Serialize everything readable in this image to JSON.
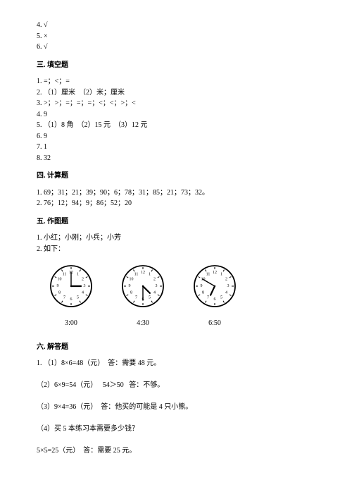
{
  "lines_top": [
    "4. √",
    "5. ×",
    "6. √"
  ],
  "section3_title": "三. 填空题",
  "section3_lines": [
    "1. =；<；=",
    "2. （1）厘米  （2）米；厘米",
    "3. >；>；=；=；=；<；<；>；<",
    "4. 9",
    "5. （1）8 角  （2）15 元  （3）12 元",
    "6. 9",
    "7. 1",
    "8. 32"
  ],
  "section4_title": "四. 计算题",
  "section4_lines": [
    "1. 69；31；21；39；90；6；78；31；85；21；73；32。",
    "2. 76；12；94；9；86；52；20"
  ],
  "section5_title": "五. 作图题",
  "section5_lines": [
    "1. 小红；小刚；小兵；小芳",
    "2. 如下："
  ],
  "clocks": [
    {
      "label": "3:00",
      "hour_angle": 90,
      "minute_angle": 0
    },
    {
      "label": "4:30",
      "hour_angle": 135,
      "minute_angle": 180
    },
    {
      "label": "6:50",
      "hour_angle": 205,
      "minute_angle": 300
    }
  ],
  "clock_style": {
    "size": 62,
    "face_fill": "#ffffff",
    "stroke": "#000000",
    "outer_stroke_width": 1.8,
    "tick_color": "#000000",
    "number_font_size": 6,
    "hour_hand_len": 14,
    "minute_hand_len": 20,
    "hand_color": "#000000",
    "center_dot_r": 1.2
  },
  "section6_title": "六. 解答题",
  "section6_lines": [
    "1. （1）8×6=48（元）  答：需要 48 元。",
    "",
    "（2）6×9=54（元）   54＞50   答：不够。",
    "",
    "（3）9×4=36（元）  答：他买的可能是 4 只小熊。",
    "",
    "（4）买 5 本练习本需要多少钱？",
    "",
    "5×5=25（元）  答：需要 25 元。"
  ]
}
